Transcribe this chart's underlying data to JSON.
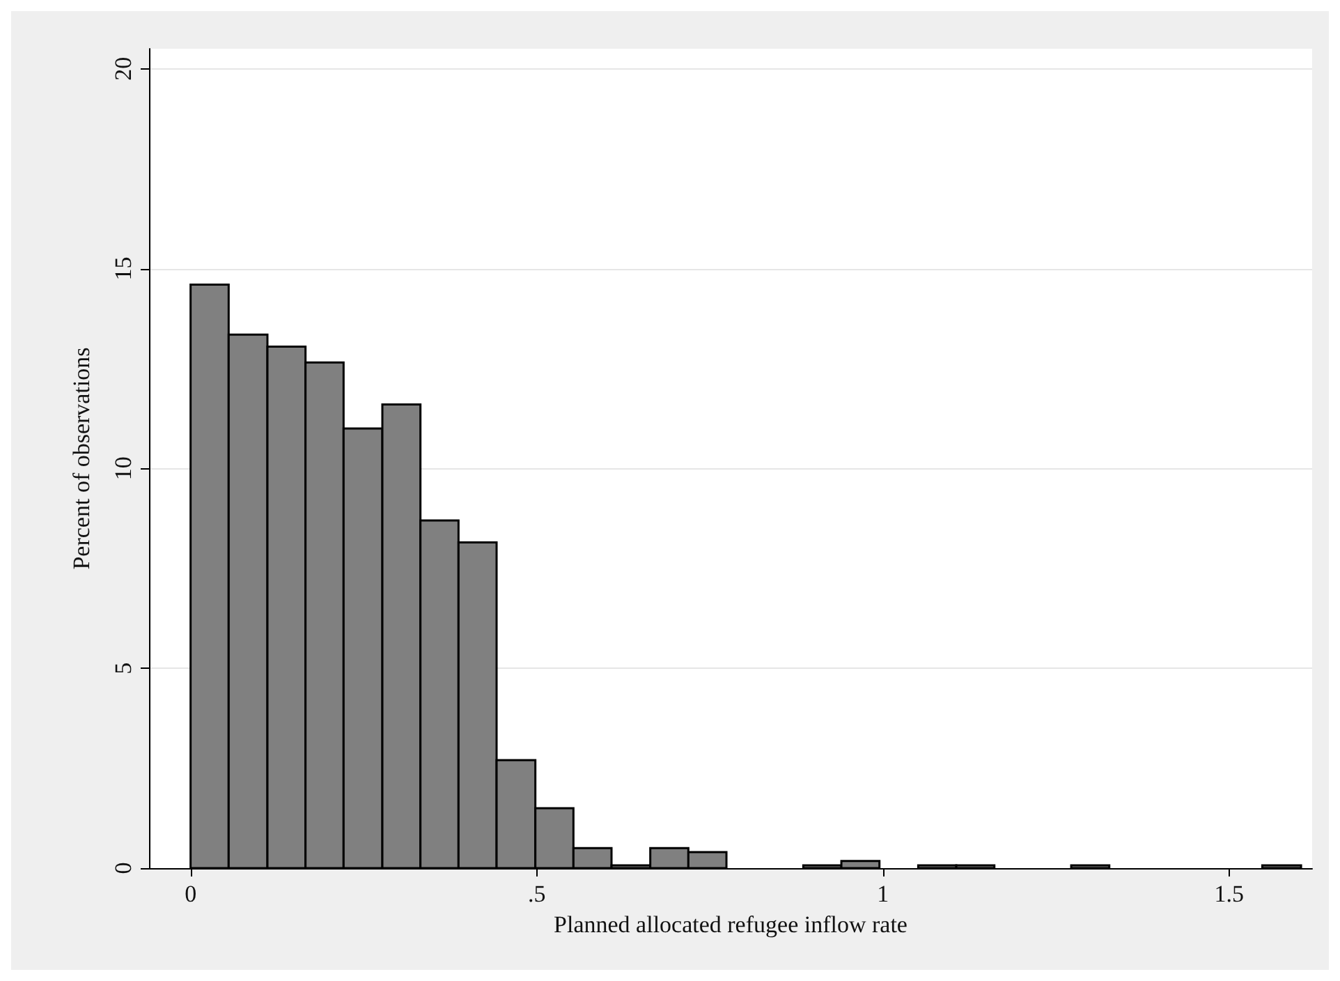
{
  "chart_data": {
    "type": "histogram",
    "xlabel": "Planned allocated refugee inflow rate",
    "ylabel": "Percent of observations",
    "bins": [
      0,
      0.055,
      0.111,
      0.166,
      0.221,
      0.277,
      0.332,
      0.387,
      0.442,
      0.498,
      0.553,
      0.608,
      0.664,
      0.719,
      0.774,
      0.885,
      0.94,
      0.995,
      1.051,
      1.106,
      1.161,
      1.272,
      1.327,
      1.548,
      1.604
    ],
    "values": [
      14.6,
      13.35,
      13.05,
      12.65,
      11,
      11.6,
      8.7,
      8.15,
      2.7,
      1.5,
      0.5,
      0.07,
      0.5,
      0.4,
      0,
      0.07,
      0.18,
      0,
      0.07,
      0.07,
      0,
      0.07,
      0,
      0.07
    ],
    "color": "#808080",
    "xlim": [
      -0.06,
      1.62
    ],
    "xticks": [
      0,
      {
        "value": 0.5,
        "label": ".5"
      },
      1,
      1.5
    ],
    "ylim": [
      0,
      20.5
    ],
    "yticks": [
      0,
      5,
      10,
      15,
      20
    ],
    "grid": "y"
  }
}
